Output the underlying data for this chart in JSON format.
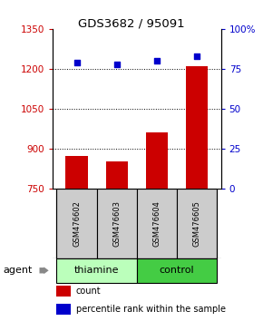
{
  "title": "GDS3682 / 95091",
  "samples": [
    "GSM476602",
    "GSM476603",
    "GSM476604",
    "GSM476605"
  ],
  "counts": [
    870,
    850,
    960,
    1210
  ],
  "percentiles": [
    79,
    78,
    80,
    83
  ],
  "ylim_left": [
    750,
    1350
  ],
  "ylim_right": [
    0,
    100
  ],
  "yticks_left": [
    750,
    900,
    1050,
    1200,
    1350
  ],
  "yticks_right": [
    0,
    25,
    50,
    75,
    100
  ],
  "bar_color": "#cc0000",
  "dot_color": "#0000cc",
  "groups": [
    {
      "label": "thiamine",
      "samples": [
        0,
        1
      ],
      "color": "#bbffbb"
    },
    {
      "label": "control",
      "samples": [
        2,
        3
      ],
      "color": "#44cc44"
    }
  ],
  "agent_label": "agent",
  "left_tick_color": "#cc0000",
  "right_tick_color": "#0000cc",
  "sample_box_color": "#cccccc",
  "legend_count_color": "#cc0000",
  "legend_pct_color": "#0000cc",
  "grid_yticks": [
    900,
    1050,
    1200
  ]
}
